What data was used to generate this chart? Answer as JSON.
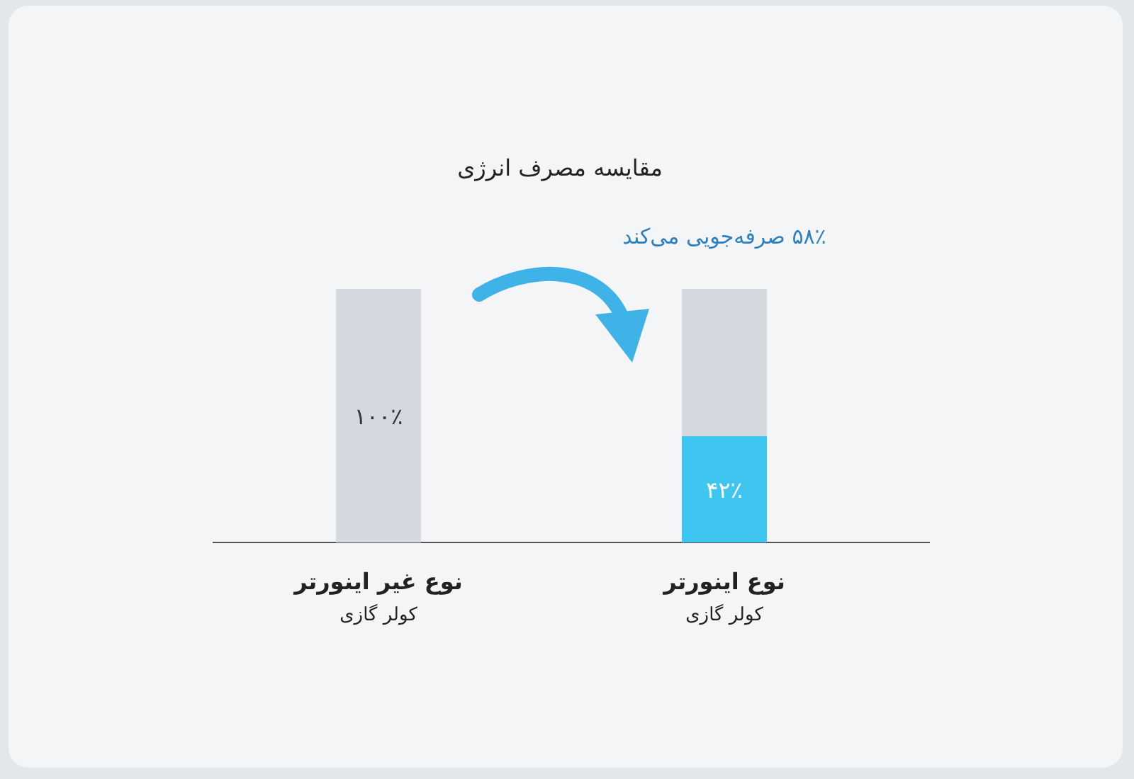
{
  "chart_data": {
    "type": "bar",
    "stacked": true,
    "title": "مقایسه مصرف انرژی",
    "categories": [
      "نوع غیر اینورتر\nکولر گازی",
      "نوع اینورتر\nکولر گازی"
    ],
    "series": [
      {
        "colors": [
          "#d5d8de",
          "#3fc6f0"
        ],
        "values": [
          100,
          42
        ],
        "value_labels": [
          "۱۰۰٪",
          "۴۲٪"
        ]
      },
      {
        "color": "#d5d8de",
        "values": [
          null,
          58
        ]
      }
    ],
    "annotations": [
      "۵۸٪ صرفه‌جویی می‌کند"
    ]
  }
}
